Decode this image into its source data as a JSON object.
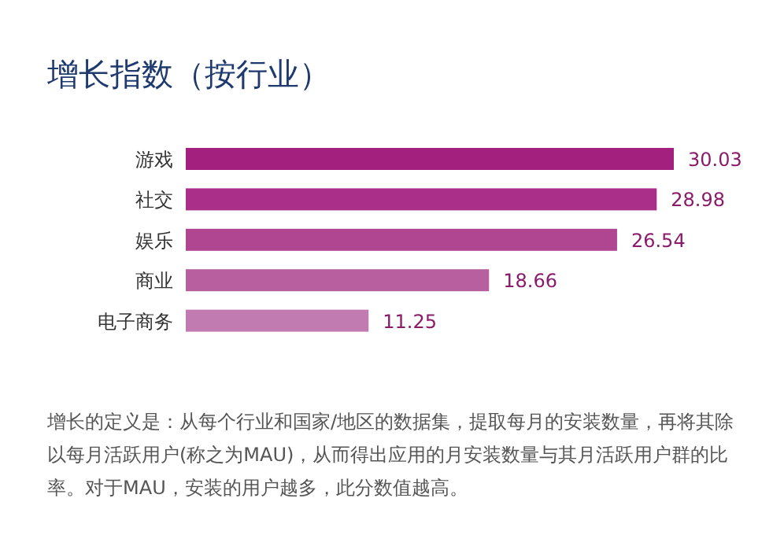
{
  "chart_data": {
    "type": "bar",
    "orientation": "horizontal",
    "title": "增长指数（按行业）",
    "categories": [
      "游戏",
      "社交",
      "娱乐",
      "商业",
      "电子商务"
    ],
    "values": [
      30.03,
      28.98,
      26.54,
      18.66,
      11.25
    ],
    "colors": [
      "#a3207f",
      "#a92f88",
      "#b04592",
      "#b8609f",
      "#c27bb0"
    ],
    "data_labels": true,
    "annotations": [
      "增长的定义是：从每个行业和国家/地区的数据集，提取每月的安装数量，再将其除以每月活跃用户(称之为MAU)，从而得出应用的月安装数量与其月活跃用户群的比率。对于MAU，安装的用户越多，此分数值越高。"
    ]
  }
}
